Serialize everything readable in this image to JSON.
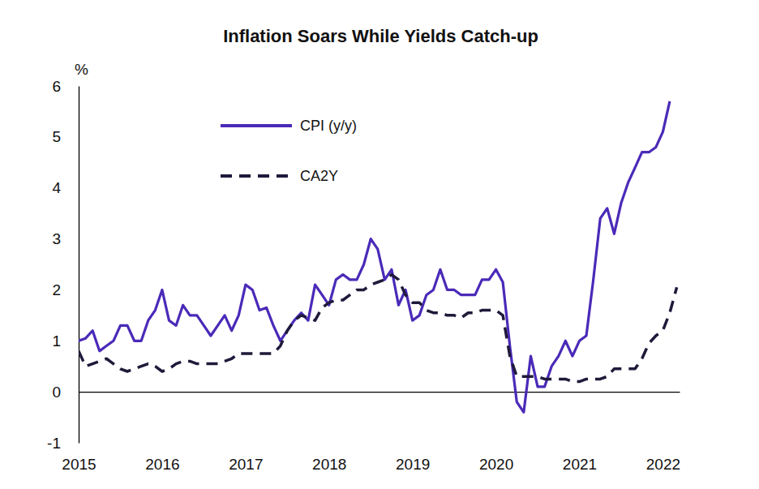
{
  "chart_data": {
    "type": "line",
    "title": "Inflation Soars While Yields Catch-up",
    "ylabel": "%",
    "x": [
      2015,
      2015.083,
      2015.167,
      2015.25,
      2015.333,
      2015.417,
      2015.5,
      2015.583,
      2015.667,
      2015.75,
      2015.833,
      2015.917,
      2016,
      2016.083,
      2016.167,
      2016.25,
      2016.333,
      2016.417,
      2016.5,
      2016.583,
      2016.667,
      2016.75,
      2016.833,
      2016.917,
      2017,
      2017.083,
      2017.167,
      2017.25,
      2017.333,
      2017.417,
      2017.5,
      2017.583,
      2017.667,
      2017.75,
      2017.833,
      2017.917,
      2018,
      2018.083,
      2018.167,
      2018.25,
      2018.333,
      2018.417,
      2018.5,
      2018.583,
      2018.667,
      2018.75,
      2018.833,
      2018.917,
      2019,
      2019.083,
      2019.167,
      2019.25,
      2019.333,
      2019.417,
      2019.5,
      2019.583,
      2019.667,
      2019.75,
      2019.833,
      2019.917,
      2020,
      2020.083,
      2020.167,
      2020.25,
      2020.333,
      2020.417,
      2020.5,
      2020.583,
      2020.667,
      2020.75,
      2020.833,
      2020.917,
      2021,
      2021.083,
      2021.167,
      2021.25,
      2021.333,
      2021.417,
      2021.5,
      2021.583,
      2021.667,
      2021.75,
      2021.833,
      2021.917,
      2022,
      2022.083,
      2022.167
    ],
    "series": [
      {
        "name": "CPI (y/y)",
        "color": "#4a2ab8",
        "line_style": "solid",
        "values": [
          1.0,
          1.05,
          1.2,
          0.8,
          0.9,
          1.0,
          1.3,
          1.3,
          1.0,
          1.0,
          1.4,
          1.6,
          2.0,
          1.4,
          1.3,
          1.7,
          1.5,
          1.5,
          1.3,
          1.1,
          1.3,
          1.5,
          1.2,
          1.5,
          2.1,
          2.0,
          1.6,
          1.65,
          1.3,
          1.0,
          1.2,
          1.4,
          1.55,
          1.4,
          2.1,
          1.9,
          1.7,
          2.2,
          2.3,
          2.2,
          2.2,
          2.5,
          3.0,
          2.8,
          2.2,
          2.4,
          1.7,
          2.0,
          1.4,
          1.5,
          1.9,
          2.0,
          2.4,
          2.0,
          2.0,
          1.9,
          1.9,
          1.9,
          2.2,
          2.2,
          2.4,
          2.15,
          0.9,
          -0.2,
          -0.4,
          0.7,
          0.1,
          0.1,
          0.5,
          0.7,
          1.0,
          0.7,
          1.0,
          1.1,
          2.2,
          3.4,
          3.6,
          3.1,
          3.7,
          4.1,
          4.4,
          4.7,
          4.7,
          4.8,
          5.1,
          5.7,
          null
        ]
      },
      {
        "name": "CA2Y",
        "color": "#1f1a3a",
        "line_style": "dashed",
        "values": [
          0.8,
          0.5,
          0.55,
          0.6,
          0.65,
          0.55,
          0.45,
          0.4,
          0.45,
          0.5,
          0.55,
          0.5,
          0.4,
          0.45,
          0.55,
          0.6,
          0.6,
          0.55,
          0.55,
          0.55,
          0.55,
          0.6,
          0.65,
          0.75,
          0.75,
          0.75,
          0.75,
          0.75,
          0.75,
          0.9,
          1.2,
          1.4,
          1.5,
          1.45,
          1.4,
          1.65,
          1.75,
          1.8,
          1.8,
          1.9,
          2.0,
          2.0,
          2.1,
          2.15,
          2.2,
          2.3,
          2.2,
          1.9,
          1.75,
          1.75,
          1.6,
          1.55,
          1.55,
          1.5,
          1.5,
          1.45,
          1.55,
          1.55,
          1.6,
          1.6,
          1.6,
          1.5,
          0.7,
          0.3,
          0.3,
          0.3,
          0.3,
          0.25,
          0.25,
          0.25,
          0.25,
          0.2,
          0.2,
          0.25,
          0.25,
          0.25,
          0.3,
          0.45,
          0.45,
          0.45,
          0.45,
          0.65,
          0.95,
          1.1,
          1.2,
          1.55,
          2.05
        ]
      }
    ],
    "xlim": [
      2015,
      2022.2
    ],
    "xticks": [
      2015,
      2016,
      2017,
      2018,
      2019,
      2020,
      2021,
      2022
    ],
    "ylim": [
      -1,
      6
    ],
    "yticks": [
      -1,
      0,
      1,
      2,
      3,
      4,
      5,
      6
    ],
    "grid": false,
    "legend": "upper center"
  }
}
